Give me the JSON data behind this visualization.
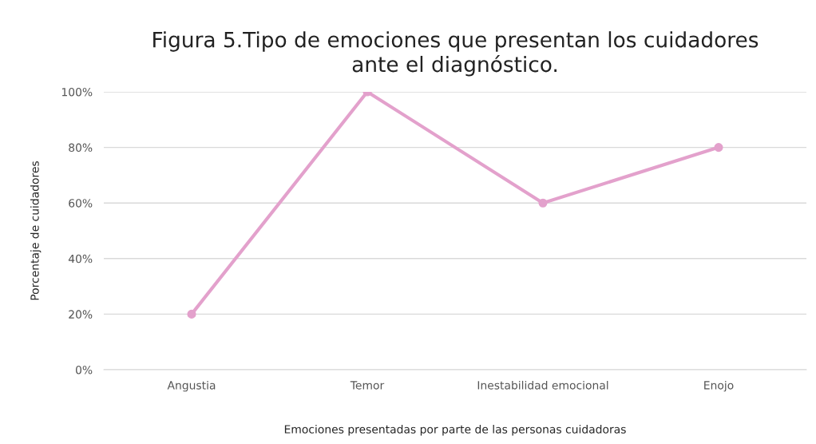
{
  "chart_data": {
    "type": "line",
    "title": "Figura 5.Tipo de emociones que presentan los cuidadores\nante el diagnóstico.",
    "xlabel": "Emociones presentadas por parte de las personas cuidadoras",
    "ylabel": "Porcentaje de cuidadores",
    "categories": [
      "Angustia",
      "Temor",
      "Inestabilidad emocional",
      "Enojo"
    ],
    "series": [
      {
        "color": "#e3a1cc",
        "values": [
          20,
          100,
          60,
          80
        ]
      }
    ],
    "ylim": [
      0,
      100
    ],
    "yticks": [
      {
        "value": 0,
        "label": "0%"
      },
      {
        "value": 20,
        "label": "20%"
      },
      {
        "value": 40,
        "label": "40%"
      },
      {
        "value": 60,
        "label": "60%"
      },
      {
        "value": 80,
        "label": "80%"
      },
      {
        "value": 100,
        "label": "100%"
      }
    ],
    "grid": "y",
    "marker": "circle",
    "line_style": "solid",
    "legend": false
  }
}
